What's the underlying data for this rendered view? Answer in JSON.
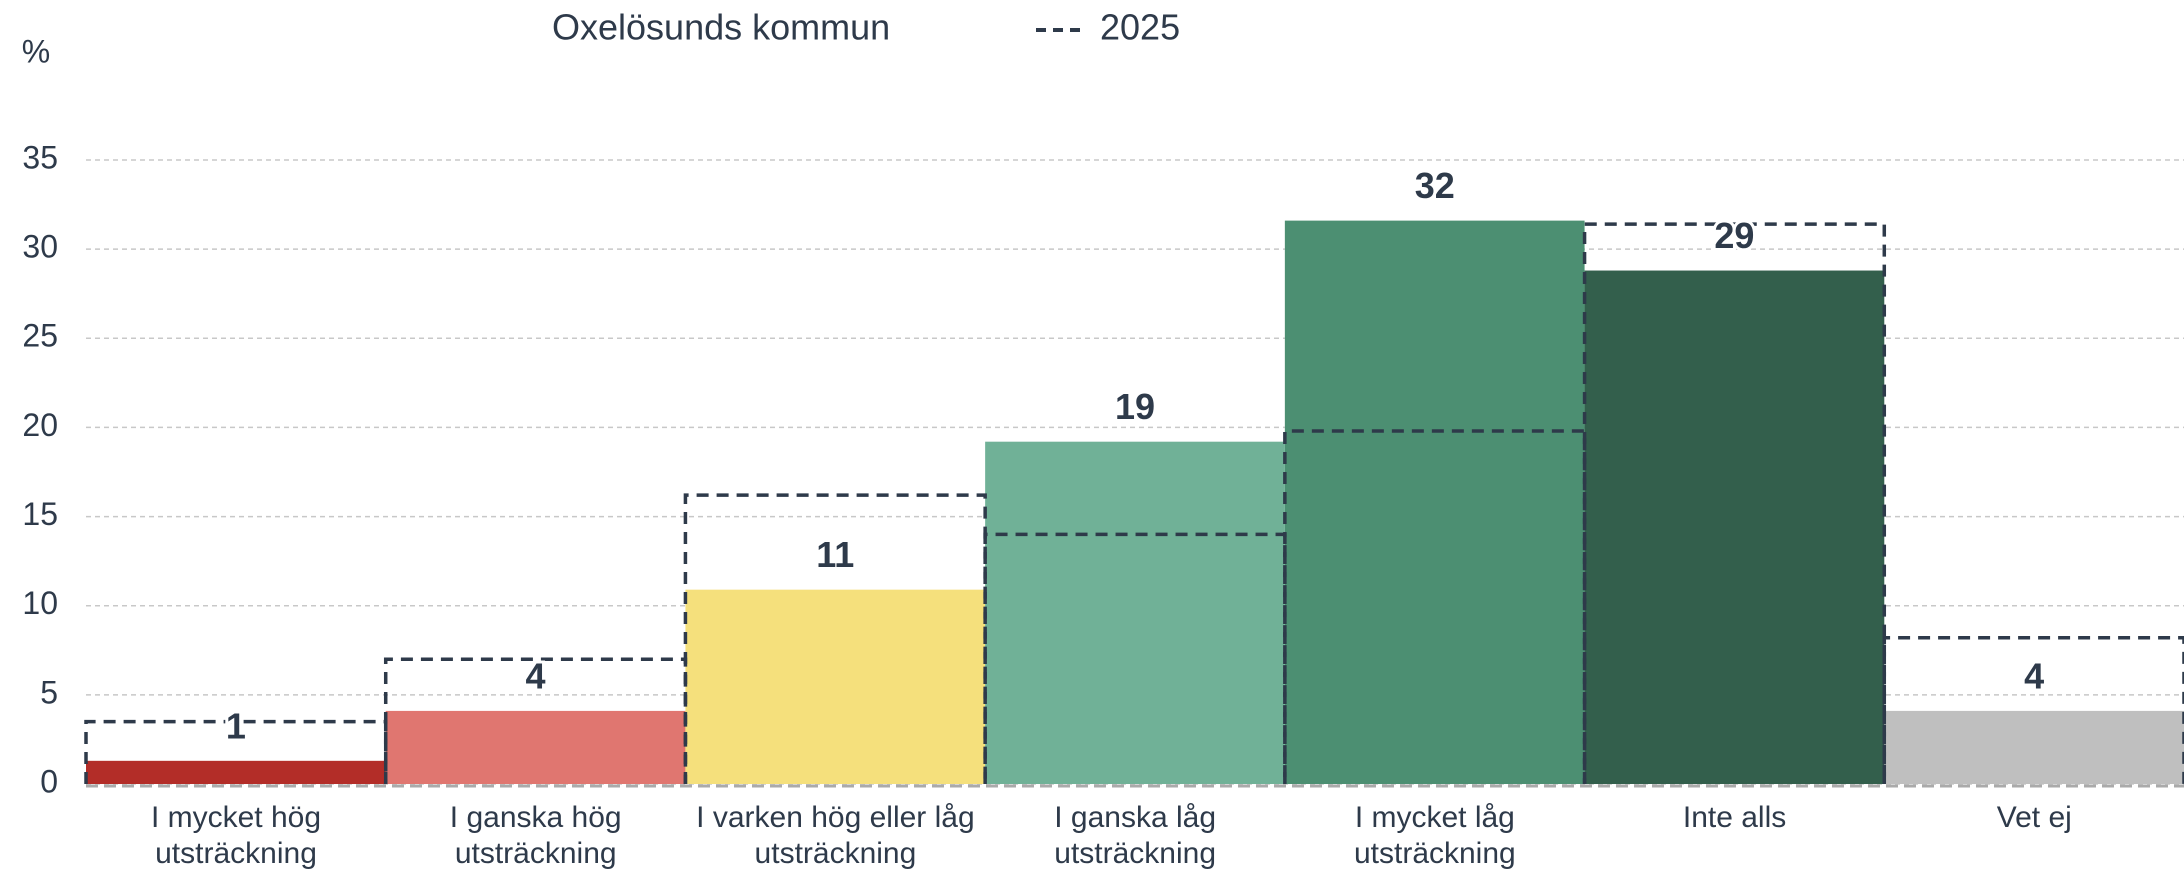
{
  "chart_data": {
    "type": "bar",
    "ylabel": "%",
    "categories": [
      "I mycket hög utsträckning",
      "I ganska hög utsträckning",
      "I varken hög eller låg utsträckning",
      "I ganska låg utsträckning",
      "I mycket låg utsträckning",
      "Inte alls",
      "Vet ej"
    ],
    "series": [
      {
        "name": "Oxelösunds kommun",
        "colors": [
          "#b32d28",
          "#e07670",
          "#f5e07c",
          "#70b197",
          "#4c8f72",
          "#335f4c",
          "#bfbfbf"
        ],
        "values": [
          1.3,
          4.1,
          10.9,
          19.2,
          31.6,
          28.8,
          4.1
        ],
        "value_labels": [
          "1",
          "4",
          "11",
          "19",
          "32",
          "29",
          "4"
        ]
      },
      {
        "name": "2025",
        "color": "#2e3a4a",
        "style": "dashed",
        "values": [
          3.5,
          7,
          16.2,
          14,
          19.8,
          31.4,
          8.2
        ]
      }
    ],
    "ylim": [
      0,
      35
    ],
    "yticks": [
      0,
      5,
      10,
      15,
      20,
      25,
      30,
      35
    ],
    "grid": true
  }
}
